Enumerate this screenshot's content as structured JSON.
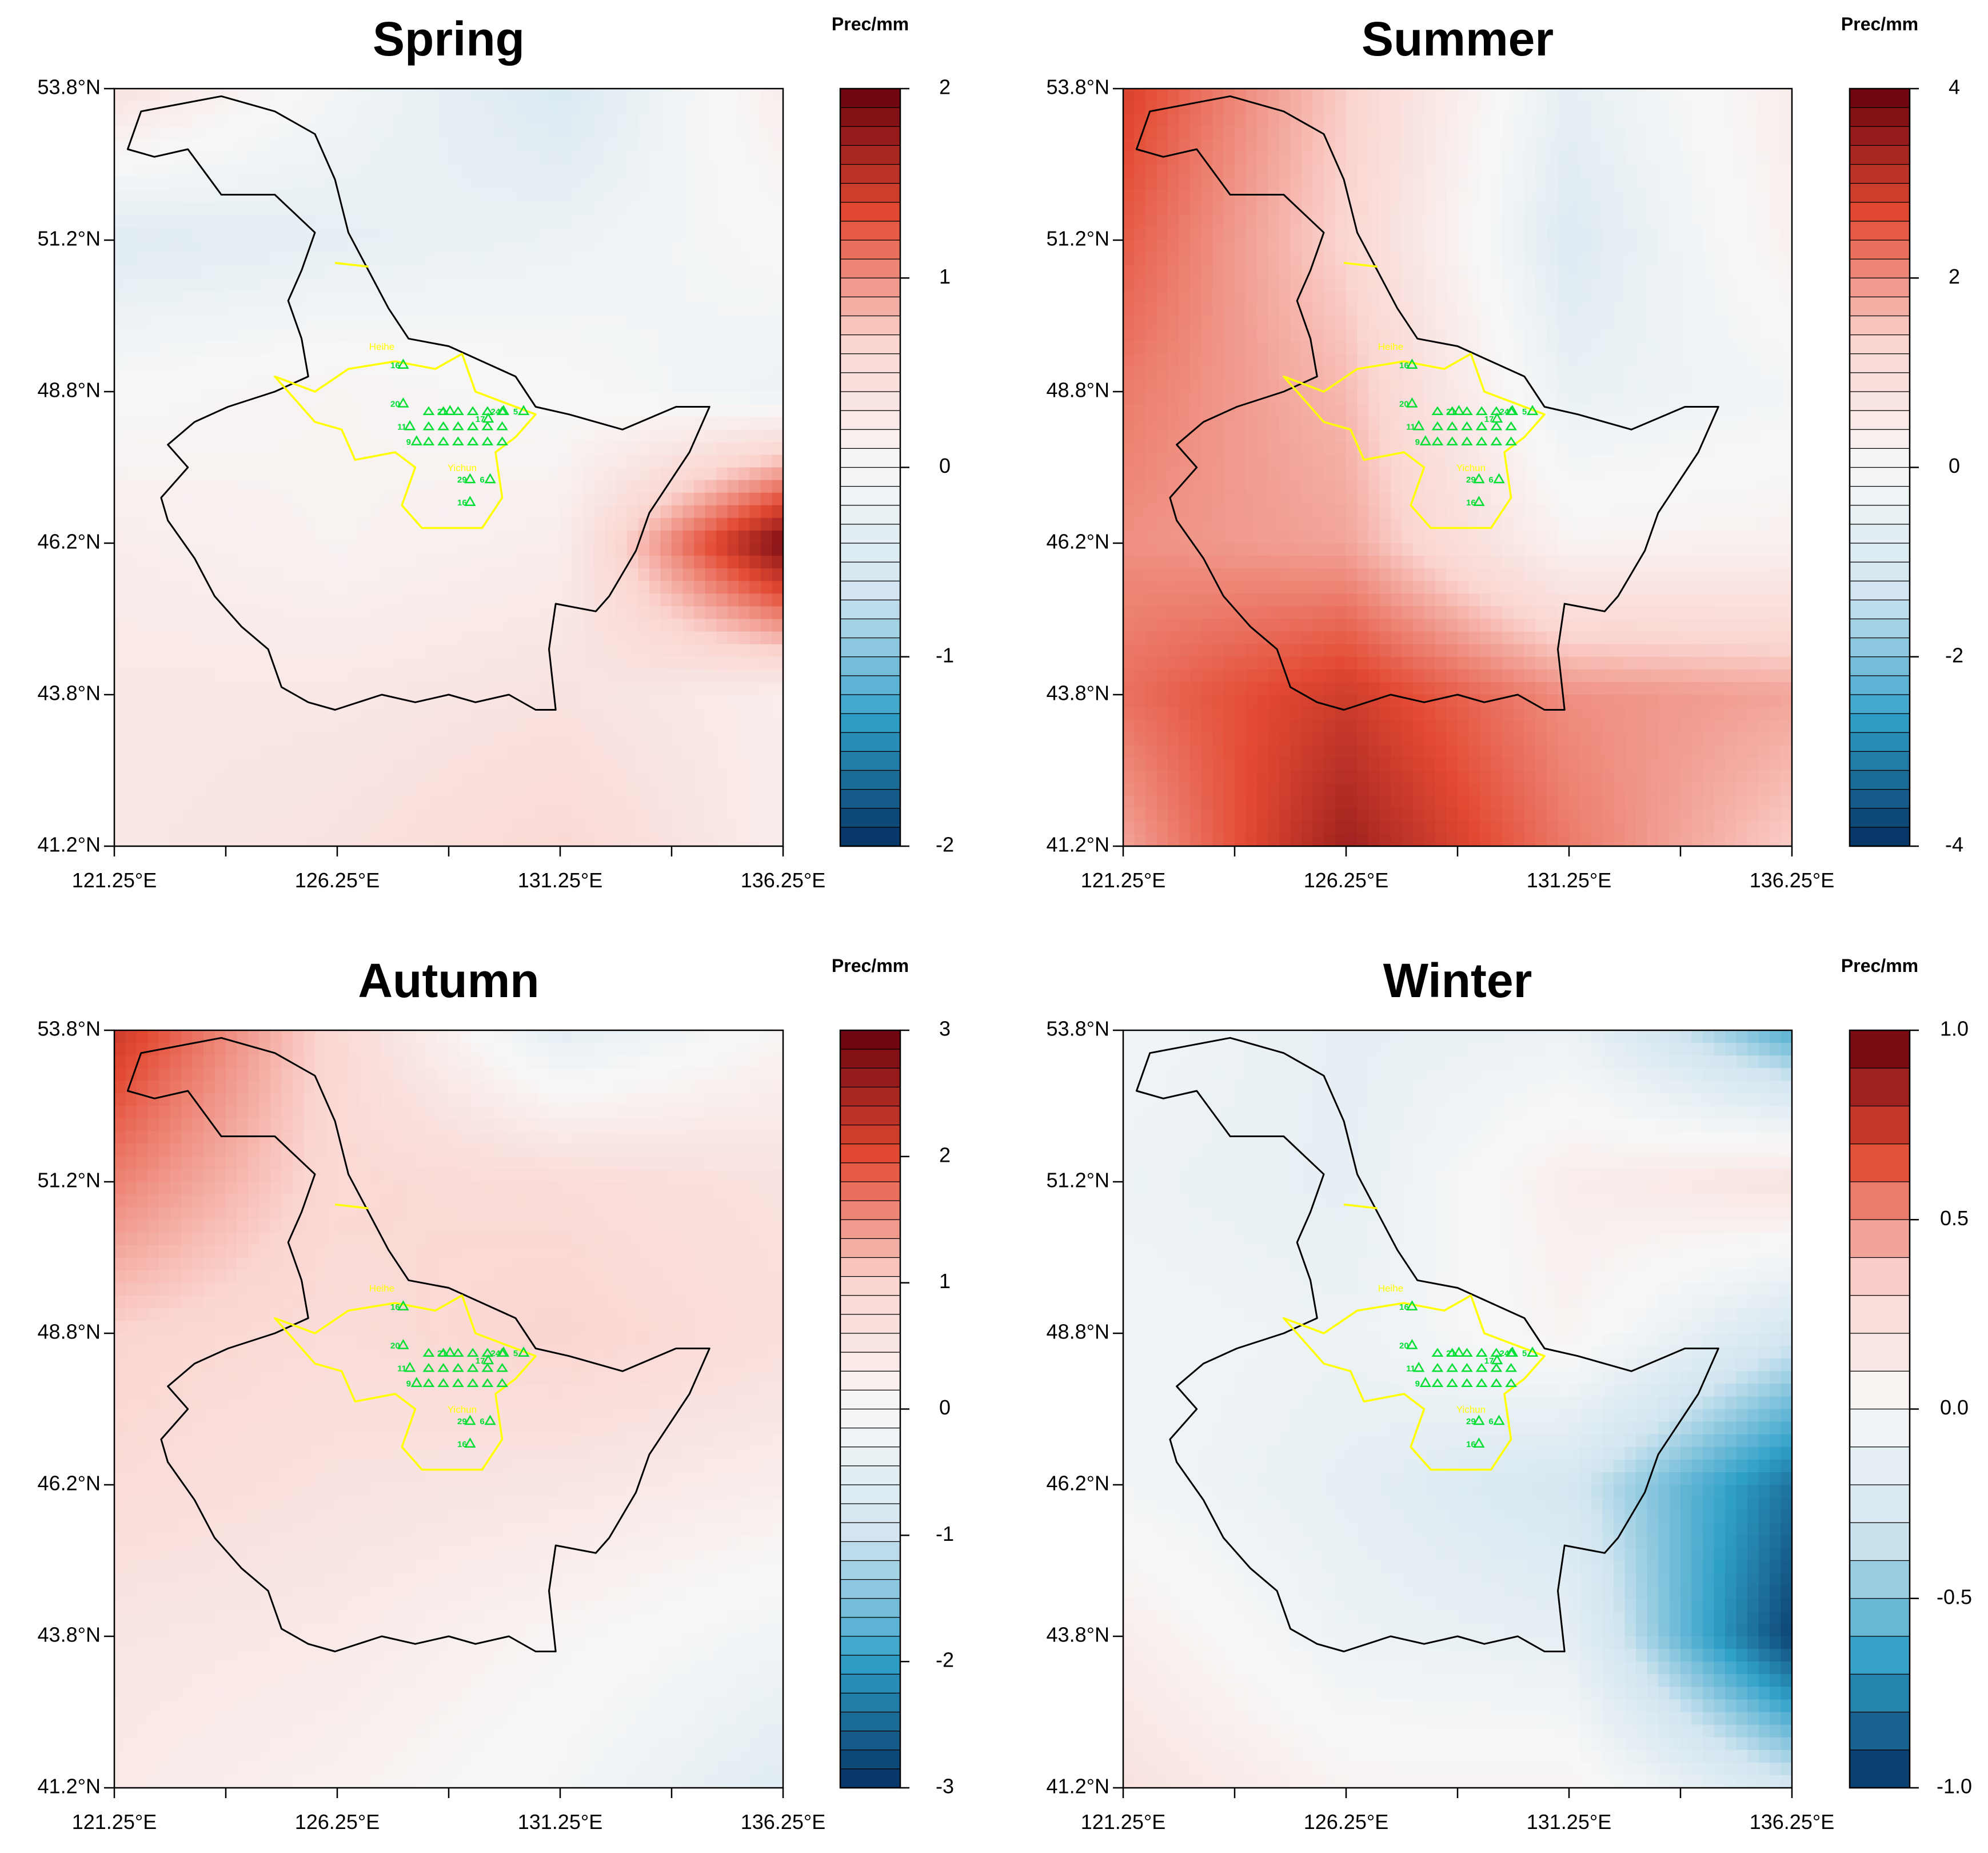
{
  "figure": {
    "units_label": "Prec/mm",
    "x_ticks": [
      "121.25°E",
      "126.25°E",
      "131.25°E",
      "136.25°E"
    ],
    "y_ticks": [
      "53.8°N",
      "51.2°N",
      "48.8°N",
      "46.2°N",
      "43.8°N",
      "41.2°N"
    ],
    "map_labels": {
      "north_city": "Heihe",
      "south_city": "Yichun"
    },
    "site_labels": [
      "16",
      "20",
      "11",
      "9",
      "21",
      "17",
      "24",
      "5",
      "29",
      "6",
      "16"
    ],
    "colors": {
      "deep_red": "#67000d",
      "red": "#e34a33",
      "light_red": "#fbd5d0",
      "white": "#f7f7f7",
      "light_blue": "#d1e5f0",
      "blue": "#2fa0c8",
      "deep_blue": "#053061",
      "border": "#000000",
      "inner_boundary": "#ffff00",
      "sites": "#00dd33"
    }
  },
  "chart_data": [
    {
      "type": "heatmap",
      "title": "Spring",
      "colorbar": {
        "min": -2,
        "max": 2,
        "ticks": [
          "2",
          "1",
          "0",
          "-1",
          "-2"
        ],
        "levels": 40
      },
      "x": [
        121.25,
        126.25,
        131.25,
        136.25
      ],
      "y": [
        53.8,
        51.2,
        48.8,
        46.2,
        43.8,
        41.2
      ],
      "values": [
        [
          0.4,
          -0.1,
          -0.5,
          0.2
        ],
        [
          -0.4,
          -0.3,
          -0.2,
          0.0
        ],
        [
          0.0,
          0.1,
          0.0,
          -0.2
        ],
        [
          0.2,
          0.1,
          0.2,
          1.9
        ],
        [
          0.3,
          0.3,
          0.4,
          0.2
        ],
        [
          0.3,
          0.4,
          0.6,
          0.2
        ]
      ],
      "xlim": [
        121.25,
        136.25
      ],
      "ylim": [
        41.2,
        53.8
      ]
    },
    {
      "type": "heatmap",
      "title": "Summer",
      "colorbar": {
        "min": -4,
        "max": 4,
        "ticks": [
          "4",
          "2",
          "0",
          "-2",
          "-4"
        ],
        "levels": 40
      },
      "x": [
        121.25,
        126.25,
        131.25,
        136.25
      ],
      "y": [
        53.8,
        51.2,
        48.8,
        46.2,
        43.8,
        41.2
      ],
      "values": [
        [
          2.8,
          1.4,
          -0.6,
          0.4
        ],
        [
          2.5,
          1.3,
          -0.9,
          0.3
        ],
        [
          2.2,
          1.6,
          -0.5,
          -0.2
        ],
        [
          2.0,
          1.8,
          0.2,
          0.3
        ],
        [
          2.3,
          2.9,
          2.0,
          1.8
        ],
        [
          1.8,
          3.4,
          2.2,
          1.4
        ]
      ],
      "xlim": [
        121.25,
        136.25
      ],
      "ylim": [
        41.2,
        53.8
      ]
    },
    {
      "type": "heatmap",
      "title": "Autumn",
      "colorbar": {
        "min": -3,
        "max": 3,
        "ticks": [
          "3",
          "2",
          "1",
          "0",
          "-1",
          "-2",
          "-3"
        ],
        "levels": 40
      },
      "x": [
        121.25,
        126.25,
        131.25,
        136.25
      ],
      "y": [
        53.8,
        51.2,
        48.8,
        46.2,
        43.8,
        41.2
      ],
      "values": [
        [
          2.2,
          0.9,
          -0.5,
          0.1
        ],
        [
          1.6,
          0.9,
          0.8,
          0.6
        ],
        [
          1.0,
          0.8,
          1.0,
          0.7
        ],
        [
          0.8,
          0.6,
          0.5,
          0.3
        ],
        [
          0.5,
          0.4,
          0.1,
          -0.2
        ],
        [
          0.4,
          0.2,
          -0.1,
          -0.6
        ]
      ],
      "xlim": [
        121.25,
        136.25
      ],
      "ylim": [
        41.2,
        53.8
      ]
    },
    {
      "type": "heatmap",
      "title": "Winter",
      "colorbar": {
        "min": -1.0,
        "max": 1.0,
        "ticks": [
          "1.0",
          "0.5",
          "0.0",
          "-0.5",
          "-1.0"
        ],
        "levels": 20
      },
      "x": [
        121.25,
        126.25,
        131.25,
        136.25
      ],
      "y": [
        53.8,
        51.2,
        48.8,
        46.2,
        43.8,
        41.2
      ],
      "values": [
        [
          -0.05,
          -0.15,
          -0.1,
          -0.6
        ],
        [
          -0.1,
          -0.15,
          0.1,
          0.2
        ],
        [
          -0.05,
          -0.1,
          0.05,
          -0.3
        ],
        [
          -0.05,
          -0.15,
          -0.3,
          -0.8
        ],
        [
          0.1,
          -0.1,
          -0.15,
          -0.95
        ],
        [
          0.2,
          0.05,
          0.05,
          -0.3
        ]
      ],
      "xlim": [
        121.25,
        136.25
      ],
      "ylim": [
        41.2,
        53.8
      ]
    }
  ]
}
